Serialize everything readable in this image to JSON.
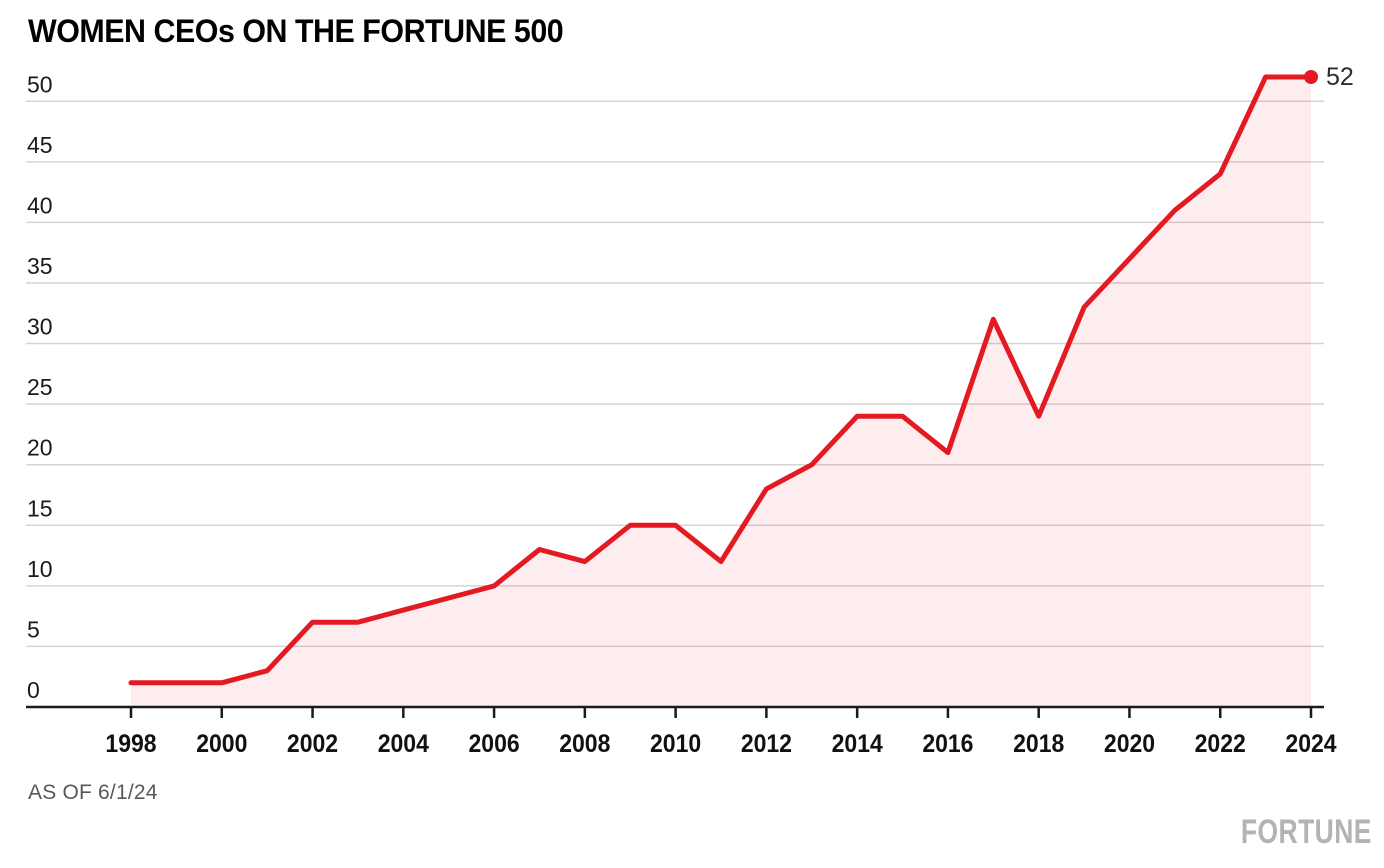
{
  "header": {
    "title": "WOMEN CEOs ON THE FORTUNE 500"
  },
  "chart_data": {
    "type": "area",
    "title": "WOMEN CEOs ON THE FORTUNE 500",
    "series_name": "Women CEOs",
    "x": [
      1998,
      1999,
      2000,
      2001,
      2002,
      2003,
      2004,
      2005,
      2006,
      2007,
      2008,
      2009,
      2010,
      2011,
      2012,
      2013,
      2014,
      2015,
      2016,
      2017,
      2018,
      2019,
      2020,
      2021,
      2022,
      2023,
      2024
    ],
    "values": [
      2,
      2,
      2,
      3,
      7,
      7,
      8,
      9,
      10,
      13,
      12,
      15,
      15,
      12,
      18,
      20,
      24,
      24,
      21,
      32,
      24,
      33,
      37,
      41,
      44,
      52,
      52
    ],
    "end_label": "52",
    "x_ticks": [
      1998,
      2000,
      2002,
      2004,
      2006,
      2008,
      2010,
      2012,
      2014,
      2016,
      2018,
      2020,
      2022,
      2024
    ],
    "y_ticks": [
      0,
      5,
      10,
      15,
      20,
      25,
      30,
      35,
      40,
      45,
      50
    ],
    "xlim": [
      1998,
      2024
    ],
    "ylim": [
      0,
      52
    ],
    "grid": "horizontal",
    "legend": "none",
    "colors": {
      "line": "#e41a23",
      "fill": "rgba(228,26,35,0.08)",
      "grid": "#d4d4d4",
      "axis": "#1a1a1a",
      "tick_label": "#1a1a1a",
      "year_label": "#111111",
      "end_label": "#2d2d2d",
      "muted": "#57585a",
      "logo": "#b3b3b3"
    }
  },
  "footer": {
    "as_of": "AS OF 6/1/24",
    "brand": "FORTUNE"
  }
}
